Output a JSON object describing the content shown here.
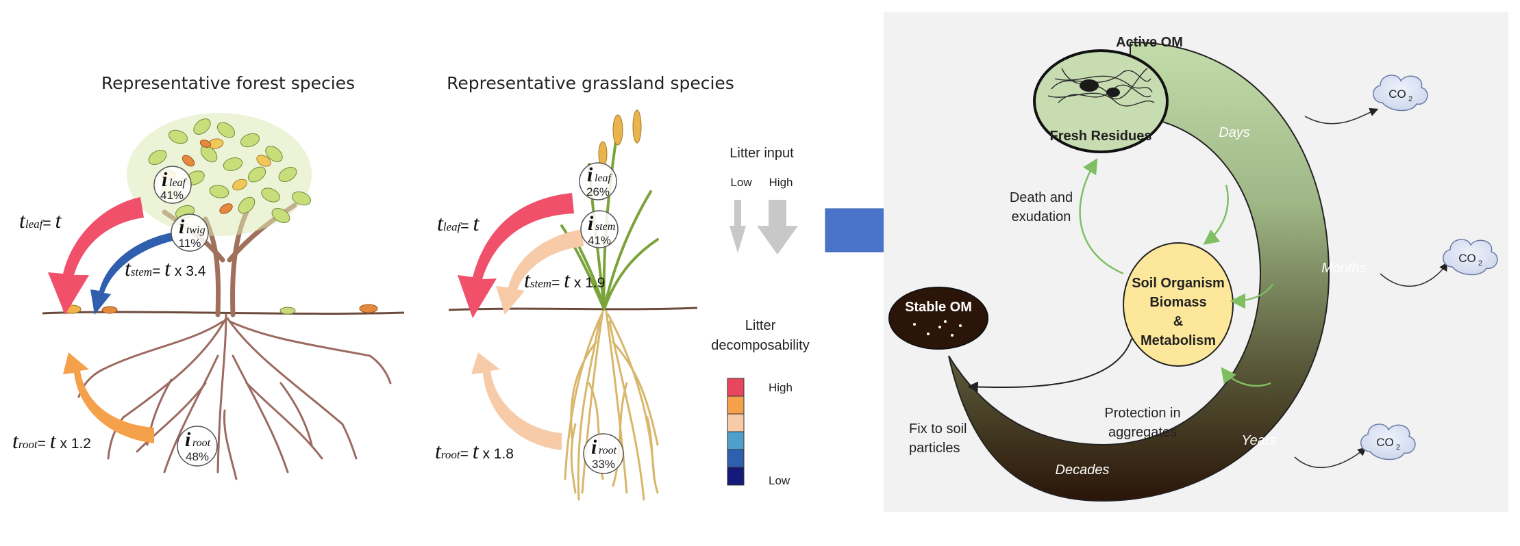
{
  "forest": {
    "title": "Representative forest species",
    "i_leaf": {
      "sym": "i",
      "sub": "leaf",
      "pct": "41%"
    },
    "i_twig": {
      "sym": "i",
      "sub": "twig",
      "pct": "11%"
    },
    "i_root": {
      "sym": "i",
      "sub": "root",
      "pct": "48%"
    },
    "t_leaf": {
      "sym": "t",
      "sub": "leaf",
      "eq": "= ",
      "rhs": "t",
      "mult": ""
    },
    "t_stem": {
      "sym": "t",
      "sub": "stem",
      "eq": "= ",
      "rhs": "t",
      "mult": " x 3.4"
    },
    "t_root": {
      "sym": "t",
      "sub": "root",
      "eq": "= ",
      "rhs": "t",
      "mult": " x 1.2"
    }
  },
  "grassland": {
    "title": "Representative grassland species",
    "i_leaf": {
      "sym": "i",
      "sub": "leaf",
      "pct": "26%"
    },
    "i_stem": {
      "sym": "i",
      "sub": "stem",
      "pct": "41%"
    },
    "i_root": {
      "sym": "i",
      "sub": "root",
      "pct": "33%"
    },
    "t_leaf": {
      "sym": "t",
      "sub": "leaf",
      "eq": "= ",
      "rhs": "t",
      "mult": ""
    },
    "t_stem": {
      "sym": "t",
      "sub": "stem",
      "eq": "= ",
      "rhs": "t",
      "mult": " x 1.9"
    },
    "t_root": {
      "sym": "t",
      "sub": "root",
      "eq": "= ",
      "rhs": "t",
      "mult": " x 1.8"
    }
  },
  "legend": {
    "litter_input": "Litter input",
    "low": "Low",
    "high": "High",
    "decomp_line1": "Litter",
    "decomp_line2": "decomposability",
    "scale_high": "High",
    "scale_low": "Low",
    "scale_colors": [
      "#e8465f",
      "#f5a04a",
      "#f7cba8",
      "#4f9fcb",
      "#2f5fae",
      "#131a7a"
    ]
  },
  "cycle": {
    "active_om": "Active OM",
    "fresh_residues": "Fresh Residues",
    "days": "Days",
    "months": "Months",
    "years": "Years",
    "decades": "Decades",
    "co2_1": "CO",
    "co2_2": "CO",
    "co2_3": "CO",
    "co2_sub": "2",
    "death_line1": "Death and",
    "death_line2": "exudation",
    "soil_line1": "Soil Organism",
    "soil_line2": "Biomass",
    "soil_line3": "&",
    "soil_line4": "Metabolism",
    "stable_om": "Stable OM",
    "protection_line1": "Protection in",
    "protection_line2": "aggregates",
    "fix_line1": "Fix to soil",
    "fix_line2": "particles"
  },
  "colors": {
    "leaf_arrow": "#f0506a",
    "stem_arrow_forest": "#2f5fae",
    "root_arrow_forest": "#f5a04a",
    "grass_pale": "#f7cba8",
    "blue_arrow": "#4a74c9",
    "cycle_green": "#b9d29e",
    "cycle_dark": "#2a1a10",
    "soil_yellow": "#fde79a",
    "fresh_green": "#c8dcb2",
    "green_arrow": "#7fbf62"
  }
}
